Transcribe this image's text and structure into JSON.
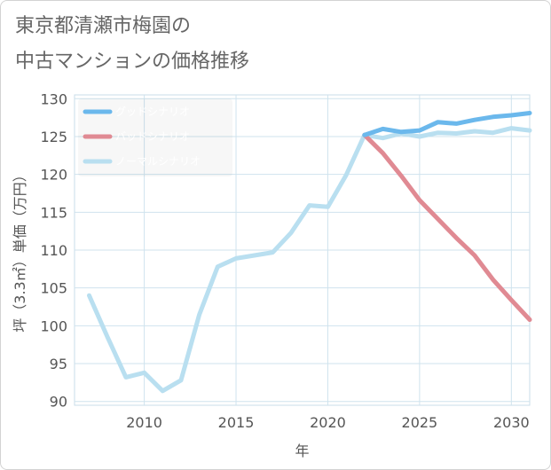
{
  "title_line1": "東京都清瀬市梅園の",
  "title_line2": "中古マンションの価格推移",
  "chart_data": {
    "type": "line",
    "xlabel": "年",
    "ylabel": "坪（3.3㎡）単価（万円）",
    "xlim": [
      2006.2,
      2031
    ],
    "ylim": [
      89.5,
      130.5
    ],
    "xticks": [
      2010,
      2015,
      2020,
      2025,
      2030
    ],
    "yticks": [
      90,
      95,
      100,
      105,
      110,
      115,
      120,
      125,
      130
    ],
    "grid": true,
    "legend_position": "top-left",
    "series": [
      {
        "name": "グッドシナリオ",
        "color": "#6bb8ec",
        "x": [
          2022,
          2023,
          2024,
          2025,
          2026,
          2027,
          2028,
          2029,
          2030,
          2031
        ],
        "y": [
          125.2,
          126,
          125.6,
          125.8,
          126.9,
          126.7,
          127.2,
          127.6,
          127.8,
          128.1
        ]
      },
      {
        "name": "バッドシナリオ",
        "color": "#e08a93",
        "x": [
          2022,
          2023,
          2024,
          2025,
          2026,
          2027,
          2028,
          2029,
          2030,
          2031
        ],
        "y": [
          125.2,
          122.8,
          119.8,
          116.6,
          114.1,
          111.6,
          109.3,
          106.1,
          103.4,
          100.8
        ]
      },
      {
        "name": "ノーマルシナリオ",
        "color": "#b9dff0",
        "x": [
          2007,
          2008,
          2009,
          2010,
          2011,
          2012,
          2013,
          2014,
          2015,
          2016,
          2017,
          2018,
          2019,
          2020,
          2021,
          2022,
          2023,
          2024,
          2025,
          2026,
          2027,
          2028,
          2029,
          2030,
          2031
        ],
        "y": [
          104,
          98.5,
          93.2,
          93.8,
          91.4,
          92.8,
          101.5,
          107.8,
          108.9,
          109.3,
          109.7,
          112.3,
          115.9,
          115.7,
          119.9,
          125.2,
          124.8,
          125.4,
          125,
          125.5,
          125.4,
          125.7,
          125.5,
          126.1,
          125.8
        ]
      }
    ]
  }
}
